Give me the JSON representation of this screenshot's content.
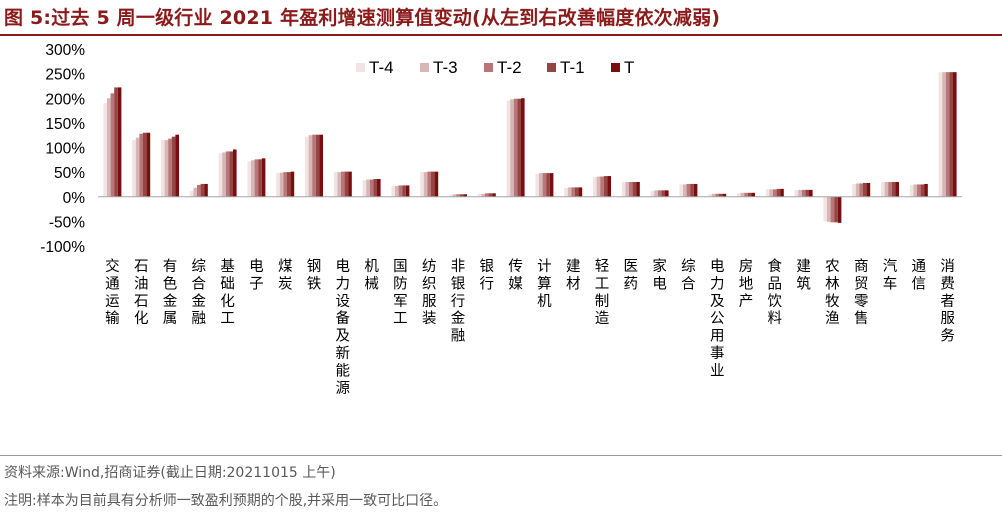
{
  "title": "图 5:过去 5 周一级行业 2021 年盈利增速测算值变动(从左到右改善幅度依次减弱)",
  "source": "资料来源:Wind,招商证券(截止日期:20211015 上午)",
  "note": "注明:样本为目前具有分析师一致盈利预期的个股,并采用一致可比口径。",
  "colors": {
    "title": "#8B1A1A",
    "series": [
      "#F2E4E4",
      "#D9B6B6",
      "#B97676",
      "#964545",
      "#7A0D0D"
    ]
  },
  "chart_data": {
    "type": "bar",
    "ylim": [
      -100,
      300
    ],
    "yticks": [
      300,
      250,
      200,
      150,
      100,
      50,
      0,
      -50,
      -100
    ],
    "ytick_labels": [
      "300%",
      "250%",
      "200%",
      "150%",
      "100%",
      "50%",
      "0%",
      "-50%",
      "-100%"
    ],
    "legend_position": "top-right",
    "categories": [
      "交通运输",
      "石油石化",
      "有色金属",
      "综合金融",
      "基础化工",
      "电子",
      "煤炭",
      "钢铁",
      "电力设备及新能源",
      "机械",
      "国防军工",
      "纺织服装",
      "非银行金融",
      "银行",
      "传媒",
      "计算机",
      "建材",
      "轻工制造",
      "医药",
      "家电",
      "综合",
      "电力及公用事业",
      "房地产",
      "食品饮料",
      "建筑",
      "农林牧渔",
      "商贸零售",
      "汽车",
      "通信",
      "消费者服务"
    ],
    "series": [
      {
        "name": "T-4",
        "values": [
          190,
          115,
          115,
          12,
          88,
          72,
          48,
          122,
          50,
          33,
          22,
          50,
          4,
          6,
          195,
          47,
          18,
          40,
          30,
          12,
          25,
          5,
          7,
          15,
          14,
          -50,
          26,
          30,
          24,
          253
        ]
      },
      {
        "name": "T-3",
        "values": [
          200,
          120,
          115,
          18,
          90,
          74,
          49,
          125,
          50,
          35,
          22,
          50,
          5,
          6,
          198,
          48,
          19,
          41,
          30,
          13,
          25,
          6,
          8,
          15,
          14,
          -51,
          27,
          30,
          25,
          253
        ]
      },
      {
        "name": "T-2",
        "values": [
          210,
          128,
          118,
          24,
          92,
          76,
          50,
          126,
          51,
          35,
          23,
          51,
          5,
          7,
          199,
          48,
          19,
          41,
          30,
          13,
          26,
          6,
          8,
          15,
          14,
          -52,
          27,
          30,
          25,
          253
        ]
      },
      {
        "name": "T-1",
        "values": [
          222,
          130,
          122,
          26,
          92,
          76,
          50,
          126,
          51,
          36,
          23,
          51,
          5,
          7,
          199,
          48,
          19,
          42,
          30,
          13,
          26,
          6,
          8,
          16,
          14,
          -52,
          28,
          30,
          25,
          253
        ]
      },
      {
        "name": "T",
        "values": [
          222,
          130,
          126,
          26,
          96,
          78,
          51,
          126,
          51,
          36,
          23,
          51,
          5,
          7,
          200,
          48,
          19,
          42,
          30,
          13,
          26,
          6,
          8,
          16,
          14,
          -53,
          28,
          30,
          26,
          253
        ]
      }
    ]
  }
}
